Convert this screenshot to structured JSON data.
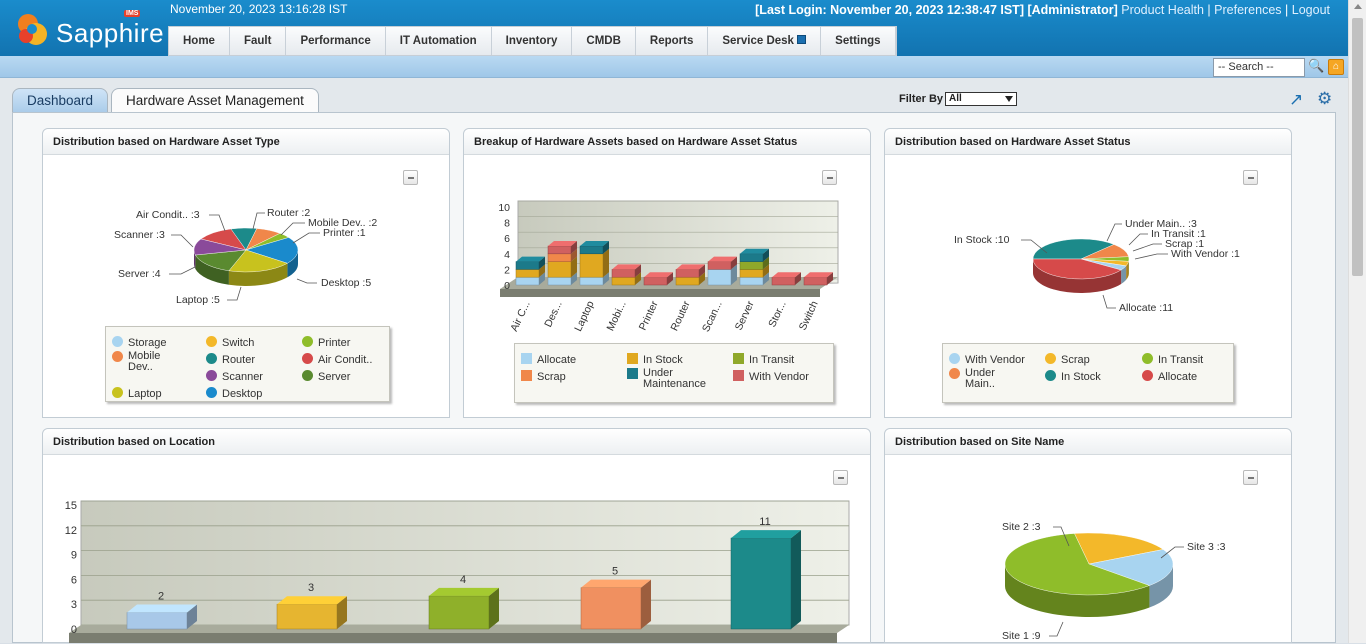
{
  "header": {
    "logo_text": "Sapphire",
    "logo_badge": "IMS",
    "datetime": "November 20, 2023 13:16:28 IST",
    "last_login": "[Last Login: November 20, 2023 12:38:47 IST]",
    "role": "[Administrator]",
    "links": [
      "Product Health",
      "Preferences",
      "Logout"
    ],
    "separator": "|"
  },
  "menu": [
    "Home",
    "Fault",
    "Performance",
    "IT Automation",
    "Inventory",
    "CMDB",
    "Reports",
    "Service Desk",
    "Settings"
  ],
  "search": {
    "value": "-- Search --"
  },
  "tabs": [
    "Dashboard",
    "Hardware Asset Management"
  ],
  "filter": {
    "label": "Filter By",
    "value": "All"
  },
  "colors": {
    "header": "#1a8ccc",
    "subbar": "#a9cde9",
    "accent": "#1a6fb0"
  },
  "cards": {
    "asset_type": {
      "title": "Distribution based on Hardware Asset Type",
      "labels": [
        "Air Condit.. :3",
        "Router :2",
        "Mobile Dev.. :2",
        "Printer :1",
        "Scanner :3",
        "Server :4",
        "Desktop :5",
        "Laptop :5"
      ],
      "legend": [
        "Storage",
        "Switch",
        "Printer",
        "Mobile Dev..",
        "Router",
        "Air Condit..",
        "Laptop",
        "Scanner",
        "Server",
        "Desktop"
      ]
    },
    "asset_status_breakup": {
      "title": "Breakup of Hardware Assets based on Hardware Asset Status",
      "legend": [
        "Allocate",
        "In Stock",
        "In Transit",
        "Scrap",
        "Under Maintenance",
        "With Vendor"
      ]
    },
    "asset_status": {
      "title": "Distribution based on Hardware Asset Status",
      "labels": [
        "Under Main.. :3",
        "In Transit :1",
        "In Stock :10",
        "Scrap :1",
        "With Vendor :1",
        "Allocate :11"
      ],
      "legend": [
        "With Vendor",
        "Scrap",
        "In Transit",
        "Under Main..",
        "In Stock",
        "Allocate"
      ]
    },
    "location": {
      "title": "Distribution based on Location"
    },
    "site_name": {
      "title": "Distribution based on Site Name",
      "labels": [
        "Site 2 :3",
        "Site 3 :3",
        "Site 1 :9"
      ]
    }
  },
  "chart_data": [
    {
      "type": "pie",
      "title": "Distribution based on Hardware Asset Type",
      "categories": [
        "Air Condit..",
        "Router",
        "Mobile Dev..",
        "Printer",
        "Desktop",
        "Laptop",
        "Server",
        "Scanner"
      ],
      "values": [
        3,
        2,
        2,
        1,
        5,
        5,
        4,
        3
      ]
    },
    {
      "type": "bar",
      "title": "Breakup of Hardware Assets based on Hardware Asset Status",
      "categories": [
        "Air C...",
        "Des...",
        "Laptop",
        "Mobi...",
        "Printer",
        "Router",
        "Scan...",
        "Server",
        "Stor...",
        "Switch"
      ],
      "ylim": [
        0,
        10
      ],
      "yticks": [
        "10",
        "8",
        "6",
        "4",
        "2",
        "0"
      ],
      "series": [
        {
          "name": "Allocate",
          "values": [
            1,
            1,
            1,
            0,
            0,
            0,
            2,
            1,
            0,
            0
          ]
        },
        {
          "name": "In Stock",
          "values": [
            1,
            2,
            3,
            1,
            0,
            1,
            0,
            1,
            0,
            0
          ]
        },
        {
          "name": "In Transit",
          "values": [
            0,
            0,
            0,
            0,
            0,
            0,
            0,
            1,
            0,
            0
          ]
        },
        {
          "name": "Scrap",
          "values": [
            0,
            1,
            0,
            0,
            0,
            0,
            0,
            0,
            0,
            0
          ]
        },
        {
          "name": "Under Maintenance",
          "values": [
            1,
            0,
            1,
            0,
            0,
            0,
            0,
            1,
            0,
            0
          ]
        },
        {
          "name": "With Vendor",
          "values": [
            0,
            1,
            0,
            1,
            1,
            1,
            1,
            0,
            1,
            1
          ]
        }
      ]
    },
    {
      "type": "pie",
      "title": "Distribution based on Hardware Asset Status",
      "categories": [
        "In Stock",
        "Under Main..",
        "In Transit",
        "Scrap",
        "With Vendor",
        "Allocate"
      ],
      "values": [
        10,
        3,
        1,
        1,
        1,
        11
      ]
    },
    {
      "type": "bar",
      "title": "Distribution based on Location",
      "categories": [
        "",
        "",
        "",
        "",
        ""
      ],
      "values": [
        2,
        3,
        4,
        5,
        11
      ],
      "ylim": [
        0,
        15
      ],
      "yticks": [
        "15",
        "12",
        "9",
        "6",
        "3",
        "0"
      ]
    },
    {
      "type": "pie",
      "title": "Distribution based on Site Name",
      "categories": [
        "Site 2",
        "Site 3",
        "Site 1"
      ],
      "values": [
        3,
        3,
        9
      ]
    }
  ]
}
